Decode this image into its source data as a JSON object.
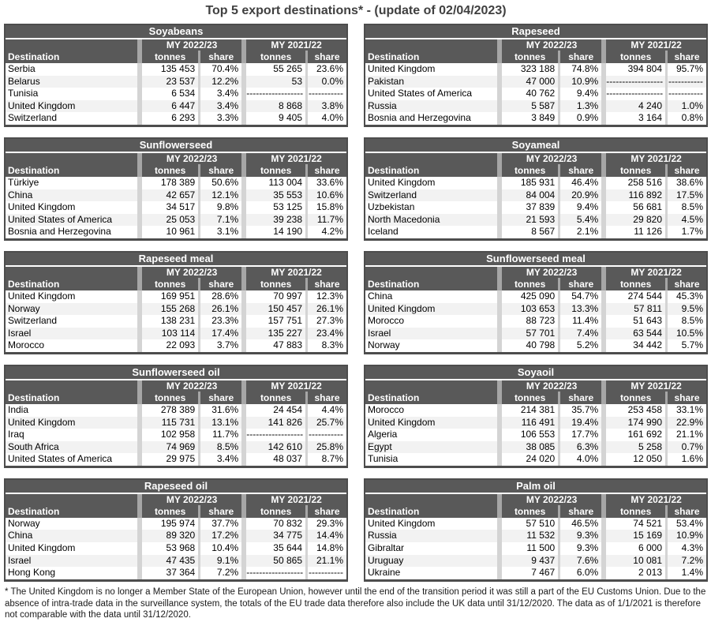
{
  "page_title": "Top 5 export destinations* - (update of 02/04/2023)",
  "columns": {
    "destination": "Destination",
    "my1": "MY 2022/23",
    "my2": "MY 2021/22",
    "tonnes": "tonnes",
    "share": "share"
  },
  "no_data_tonnes": "------------------",
  "no_data_share": "-----------",
  "colors": {
    "header_bg": "#595959",
    "header_text": "#ffffff",
    "header_spacer": "#a6a6a6",
    "data_spacer": "#d4d4d4",
    "row_alt": "#f2f2f2",
    "border": "#4d4d4d",
    "title_text": "#404040"
  },
  "tables": [
    {
      "title": "Soyabeans",
      "rows": [
        {
          "destination": "Serbia",
          "t1": "135 453",
          "s1": "70.4%",
          "t2": "55 265",
          "s2": "23.6%"
        },
        {
          "destination": "Belarus",
          "t1": "23 537",
          "s1": "12.2%",
          "t2": "53",
          "s2": "0.0%"
        },
        {
          "destination": "Tunisia",
          "t1": "6 534",
          "s1": "3.4%",
          "t2": "------------------",
          "s2": "-----------"
        },
        {
          "destination": "United Kingdom",
          "t1": "6 447",
          "s1": "3.4%",
          "t2": "8 868",
          "s2": "3.8%"
        },
        {
          "destination": "Switzerland",
          "t1": "6 293",
          "s1": "3.3%",
          "t2": "9 405",
          "s2": "4.0%"
        }
      ]
    },
    {
      "title": "Rapeseed",
      "rows": [
        {
          "destination": "United Kingdom",
          "t1": "323 188",
          "s1": "74.8%",
          "t2": "394 804",
          "s2": "95.7%"
        },
        {
          "destination": "Pakistan",
          "t1": "47 000",
          "s1": "10.9%",
          "t2": "------------------",
          "s2": "-----------"
        },
        {
          "destination": "United States of America",
          "t1": "40 762",
          "s1": "9.4%",
          "t2": "------------------",
          "s2": "-----------"
        },
        {
          "destination": "Russia",
          "t1": "5 587",
          "s1": "1.3%",
          "t2": "4 240",
          "s2": "1.0%"
        },
        {
          "destination": "Bosnia and Herzegovina",
          "t1": "3 849",
          "s1": "0.9%",
          "t2": "3 164",
          "s2": "0.8%"
        }
      ]
    },
    {
      "title": "Sunflowerseed",
      "rows": [
        {
          "destination": "Türkiye",
          "t1": "178 389",
          "s1": "50.6%",
          "t2": "113 004",
          "s2": "33.6%"
        },
        {
          "destination": "China",
          "t1": "42 657",
          "s1": "12.1%",
          "t2": "35 553",
          "s2": "10.6%"
        },
        {
          "destination": "United Kingdom",
          "t1": "34 517",
          "s1": "9.8%",
          "t2": "53 125",
          "s2": "15.8%"
        },
        {
          "destination": "United States of America",
          "t1": "25 053",
          "s1": "7.1%",
          "t2": "39 238",
          "s2": "11.7%"
        },
        {
          "destination": "Bosnia and Herzegovina",
          "t1": "10 961",
          "s1": "3.1%",
          "t2": "14 190",
          "s2": "4.2%"
        }
      ]
    },
    {
      "title": "Soyameal",
      "rows": [
        {
          "destination": "United Kingdom",
          "t1": "185 931",
          "s1": "46.4%",
          "t2": "258 516",
          "s2": "38.6%"
        },
        {
          "destination": "Switzerland",
          "t1": "84 004",
          "s1": "20.9%",
          "t2": "116 892",
          "s2": "17.5%"
        },
        {
          "destination": "Uzbekistan",
          "t1": "37 839",
          "s1": "9.4%",
          "t2": "56 681",
          "s2": "8.5%"
        },
        {
          "destination": "North Macedonia",
          "t1": "21 593",
          "s1": "5.4%",
          "t2": "29 820",
          "s2": "4.5%"
        },
        {
          "destination": "Iceland",
          "t1": "8 567",
          "s1": "2.1%",
          "t2": "11 126",
          "s2": "1.7%"
        }
      ]
    },
    {
      "title": "Rapeseed meal",
      "rows": [
        {
          "destination": "United Kingdom",
          "t1": "169 951",
          "s1": "28.6%",
          "t2": "70 997",
          "s2": "12.3%"
        },
        {
          "destination": "Norway",
          "t1": "155 268",
          "s1": "26.1%",
          "t2": "150 457",
          "s2": "26.1%"
        },
        {
          "destination": "Switzerland",
          "t1": "138 231",
          "s1": "23.3%",
          "t2": "157 751",
          "s2": "27.3%"
        },
        {
          "destination": "Israel",
          "t1": "103 114",
          "s1": "17.4%",
          "t2": "135 227",
          "s2": "23.4%"
        },
        {
          "destination": "Morocco",
          "t1": "22 093",
          "s1": "3.7%",
          "t2": "47 883",
          "s2": "8.3%"
        }
      ]
    },
    {
      "title": "Sunflowerseed meal",
      "rows": [
        {
          "destination": "China",
          "t1": "425 090",
          "s1": "54.7%",
          "t2": "274 544",
          "s2": "45.3%"
        },
        {
          "destination": "United Kingdom",
          "t1": "103 653",
          "s1": "13.3%",
          "t2": "57 811",
          "s2": "9.5%"
        },
        {
          "destination": "Morocco",
          "t1": "88 723",
          "s1": "11.4%",
          "t2": "51 643",
          "s2": "8.5%"
        },
        {
          "destination": "Israel",
          "t1": "57 701",
          "s1": "7.4%",
          "t2": "63 544",
          "s2": "10.5%"
        },
        {
          "destination": "Norway",
          "t1": "40 798",
          "s1": "5.2%",
          "t2": "34 442",
          "s2": "5.7%"
        }
      ]
    },
    {
      "title": "Sunflowerseed oil",
      "rows": [
        {
          "destination": "India",
          "t1": "278 389",
          "s1": "31.6%",
          "t2": "24 454",
          "s2": "4.4%"
        },
        {
          "destination": "United Kingdom",
          "t1": "115 731",
          "s1": "13.1%",
          "t2": "141 826",
          "s2": "25.7%"
        },
        {
          "destination": "Iraq",
          "t1": "102 958",
          "s1": "11.7%",
          "t2": "------------------",
          "s2": "-----------"
        },
        {
          "destination": "South Africa",
          "t1": "74 969",
          "s1": "8.5%",
          "t2": "142 610",
          "s2": "25.8%"
        },
        {
          "destination": "United States of America",
          "t1": "29 975",
          "s1": "3.4%",
          "t2": "48 037",
          "s2": "8.7%"
        }
      ]
    },
    {
      "title": "Soyaoil",
      "rows": [
        {
          "destination": "Morocco",
          "t1": "214 381",
          "s1": "35.7%",
          "t2": "253 458",
          "s2": "33.1%"
        },
        {
          "destination": "United Kingdom",
          "t1": "116 491",
          "s1": "19.4%",
          "t2": "174 990",
          "s2": "22.9%"
        },
        {
          "destination": "Algeria",
          "t1": "106 553",
          "s1": "17.7%",
          "t2": "161 692",
          "s2": "21.1%"
        },
        {
          "destination": "Egypt",
          "t1": "38 085",
          "s1": "6.3%",
          "t2": "5 258",
          "s2": "0.7%"
        },
        {
          "destination": "Tunisia",
          "t1": "24 020",
          "s1": "4.0%",
          "t2": "12 050",
          "s2": "1.6%"
        }
      ]
    },
    {
      "title": "Rapeseed oil",
      "rows": [
        {
          "destination": "Norway",
          "t1": "195 974",
          "s1": "37.7%",
          "t2": "70 832",
          "s2": "29.3%"
        },
        {
          "destination": "China",
          "t1": "89 320",
          "s1": "17.2%",
          "t2": "34 775",
          "s2": "14.4%"
        },
        {
          "destination": "United Kingdom",
          "t1": "53 968",
          "s1": "10.4%",
          "t2": "35 644",
          "s2": "14.8%"
        },
        {
          "destination": "Israel",
          "t1": "47 435",
          "s1": "9.1%",
          "t2": "50 865",
          "s2": "21.1%"
        },
        {
          "destination": "Hong Kong",
          "t1": "37 364",
          "s1": "7.2%",
          "t2": "------------------",
          "s2": "-----------"
        }
      ]
    },
    {
      "title": "Palm oil",
      "rows": [
        {
          "destination": "United Kingdom",
          "t1": "57 510",
          "s1": "46.5%",
          "t2": "74 521",
          "s2": "53.4%"
        },
        {
          "destination": "Russia",
          "t1": "11 532",
          "s1": "9.3%",
          "t2": "15 169",
          "s2": "10.9%"
        },
        {
          "destination": "Gibraltar",
          "t1": "11 500",
          "s1": "9.3%",
          "t2": "6 000",
          "s2": "4.3%"
        },
        {
          "destination": "Uruguay",
          "t1": "9 437",
          "s1": "7.6%",
          "t2": "10 081",
          "s2": "7.2%"
        },
        {
          "destination": "Ukraine",
          "t1": "7 467",
          "s1": "6.0%",
          "t2": "2 013",
          "s2": "1.4%"
        }
      ]
    }
  ],
  "footnote": "* The United Kingdom is no longer a Member State of the European Union, however until the end of the transition period it was still a part of the EU Customs Union. Due to the absence of intra-trade data in the surveillance system, the totals of the EU trade data  therefore also include the UK data until 31/12/2020. The data as of 1/1/2021 is therefore not comparable with the data until 31/12/2020."
}
